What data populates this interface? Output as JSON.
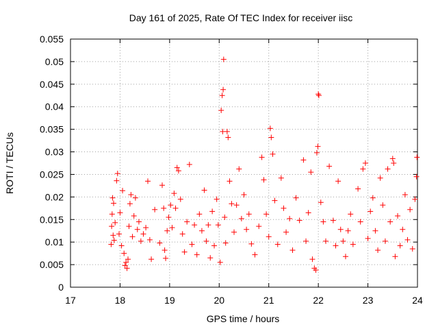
{
  "chart_data": {
    "type": "scatter",
    "title": "Day 161 of 2025, Rate Of TEC Index for receiver iisc",
    "xlabel": "GPS time / hours",
    "ylabel": "ROTI / TECUs",
    "xlim": [
      17,
      24
    ],
    "ylim": [
      0,
      0.055
    ],
    "xticks": [
      "17",
      "18",
      "19",
      "20",
      "21",
      "22",
      "23",
      "24"
    ],
    "yticks": [
      "0",
      "0.005",
      "0.01",
      "0.015",
      "0.02",
      "0.025",
      "0.03",
      "0.035",
      "0.04",
      "0.045",
      "0.05",
      "0.055"
    ],
    "grid": true,
    "marker": "+",
    "marker_color": "#ff0000",
    "series": [
      {
        "name": "ROTI",
        "points": [
          [
            17.82,
            0.0095
          ],
          [
            17.83,
            0.0135
          ],
          [
            17.84,
            0.0162
          ],
          [
            17.85,
            0.0198
          ],
          [
            17.86,
            0.0115
          ],
          [
            17.87,
            0.0186
          ],
          [
            17.88,
            0.0104
          ],
          [
            17.9,
            0.0143
          ],
          [
            17.93,
            0.0236
          ],
          [
            17.95,
            0.0252
          ],
          [
            17.98,
            0.0118
          ],
          [
            18.0,
            0.0165
          ],
          [
            18.03,
            0.0092
          ],
          [
            18.05,
            0.0214
          ],
          [
            18.08,
            0.0075
          ],
          [
            18.1,
            0.0048
          ],
          [
            18.12,
            0.0055
          ],
          [
            18.14,
            0.0042
          ],
          [
            18.16,
            0.0062
          ],
          [
            18.18,
            0.0135
          ],
          [
            18.2,
            0.0185
          ],
          [
            18.22,
            0.0205
          ],
          [
            18.25,
            0.0112
          ],
          [
            18.28,
            0.0158
          ],
          [
            18.31,
            0.0198
          ],
          [
            18.35,
            0.0128
          ],
          [
            18.38,
            0.0145
          ],
          [
            18.42,
            0.0102
          ],
          [
            18.47,
            0.0118
          ],
          [
            18.52,
            0.0132
          ],
          [
            18.56,
            0.0235
          ],
          [
            18.6,
            0.0105
          ],
          [
            18.63,
            0.0062
          ],
          [
            18.7,
            0.0172
          ],
          [
            18.8,
            0.0098
          ],
          [
            18.85,
            0.0226
          ],
          [
            18.88,
            0.0175
          ],
          [
            18.9,
            0.0082
          ],
          [
            18.92,
            0.0064
          ],
          [
            18.95,
            0.0125
          ],
          [
            18.98,
            0.0155
          ],
          [
            19.02,
            0.0182
          ],
          [
            19.05,
            0.0132
          ],
          [
            19.09,
            0.0208
          ],
          [
            19.12,
            0.0175
          ],
          [
            19.15,
            0.0265
          ],
          [
            19.18,
            0.0258
          ],
          [
            19.22,
            0.0195
          ],
          [
            19.26,
            0.0118
          ],
          [
            19.3,
            0.0078
          ],
          [
            19.35,
            0.0145
          ],
          [
            19.4,
            0.0272
          ],
          [
            19.45,
            0.0095
          ],
          [
            19.5,
            0.0138
          ],
          [
            19.55,
            0.0072
          ],
          [
            19.6,
            0.0162
          ],
          [
            19.65,
            0.0125
          ],
          [
            19.7,
            0.0215
          ],
          [
            19.74,
            0.0102
          ],
          [
            19.78,
            0.0138
          ],
          [
            19.82,
            0.0065
          ],
          [
            19.86,
            0.0168
          ],
          [
            19.9,
            0.0092
          ],
          [
            19.95,
            0.0195
          ],
          [
            19.98,
            0.0138
          ],
          [
            20.02,
            0.0055
          ],
          [
            20.04,
            0.0392
          ],
          [
            20.06,
            0.0425
          ],
          [
            20.07,
            0.0345
          ],
          [
            20.08,
            0.0438
          ],
          [
            20.09,
            0.0505
          ],
          [
            20.11,
            0.0155
          ],
          [
            20.13,
            0.0098
          ],
          [
            20.16,
            0.0345
          ],
          [
            20.18,
            0.0332
          ],
          [
            20.21,
            0.0235
          ],
          [
            20.25,
            0.0185
          ],
          [
            20.3,
            0.0122
          ],
          [
            20.35,
            0.0182
          ],
          [
            20.4,
            0.0262
          ],
          [
            20.45,
            0.0152
          ],
          [
            20.5,
            0.0205
          ],
          [
            20.55,
            0.0128
          ],
          [
            20.6,
            0.0162
          ],
          [
            20.65,
            0.0096
          ],
          [
            20.72,
            0.0072
          ],
          [
            20.8,
            0.0135
          ],
          [
            20.86,
            0.0288
          ],
          [
            20.9,
            0.0238
          ],
          [
            20.95,
            0.0162
          ],
          [
            21.0,
            0.0112
          ],
          [
            21.03,
            0.0352
          ],
          [
            21.05,
            0.0332
          ],
          [
            21.08,
            0.0295
          ],
          [
            21.12,
            0.0192
          ],
          [
            21.18,
            0.0095
          ],
          [
            21.25,
            0.0242
          ],
          [
            21.3,
            0.0175
          ],
          [
            21.35,
            0.0122
          ],
          [
            21.42,
            0.0152
          ],
          [
            21.48,
            0.0082
          ],
          [
            21.55,
            0.0198
          ],
          [
            21.62,
            0.0148
          ],
          [
            21.7,
            0.0282
          ],
          [
            21.75,
            0.0102
          ],
          [
            21.8,
            0.0165
          ],
          [
            21.85,
            0.0255
          ],
          [
            21.88,
            0.0062
          ],
          [
            21.92,
            0.0042
          ],
          [
            21.95,
            0.0038
          ],
          [
            21.97,
            0.0298
          ],
          [
            21.99,
            0.0312
          ],
          [
            22.0,
            0.0428
          ],
          [
            22.01,
            0.0425
          ],
          [
            22.05,
            0.0188
          ],
          [
            22.1,
            0.0145
          ],
          [
            22.15,
            0.0102
          ],
          [
            22.22,
            0.0268
          ],
          [
            22.3,
            0.0148
          ],
          [
            22.35,
            0.0092
          ],
          [
            22.4,
            0.0235
          ],
          [
            22.45,
            0.0128
          ],
          [
            22.5,
            0.0102
          ],
          [
            22.55,
            0.0068
          ],
          [
            22.6,
            0.0125
          ],
          [
            22.65,
            0.0162
          ],
          [
            22.7,
            0.0095
          ],
          [
            22.8,
            0.0218
          ],
          [
            22.85,
            0.0145
          ],
          [
            22.9,
            0.0262
          ],
          [
            22.95,
            0.0275
          ],
          [
            23.0,
            0.0108
          ],
          [
            23.05,
            0.0168
          ],
          [
            23.1,
            0.0198
          ],
          [
            23.15,
            0.0125
          ],
          [
            23.2,
            0.0082
          ],
          [
            23.25,
            0.0242
          ],
          [
            23.3,
            0.0182
          ],
          [
            23.35,
            0.0102
          ],
          [
            23.4,
            0.0262
          ],
          [
            23.45,
            0.0145
          ],
          [
            23.5,
            0.0285
          ],
          [
            23.52,
            0.0275
          ],
          [
            23.55,
            0.0068
          ],
          [
            23.6,
            0.0158
          ],
          [
            23.65,
            0.0092
          ],
          [
            23.7,
            0.0128
          ],
          [
            23.75,
            0.0205
          ],
          [
            23.8,
            0.0105
          ],
          [
            23.85,
            0.0172
          ],
          [
            23.9,
            0.0085
          ],
          [
            23.95,
            0.0195
          ],
          [
            23.99,
            0.0288
          ],
          [
            23.98,
            0.0245
          ]
        ]
      }
    ]
  }
}
